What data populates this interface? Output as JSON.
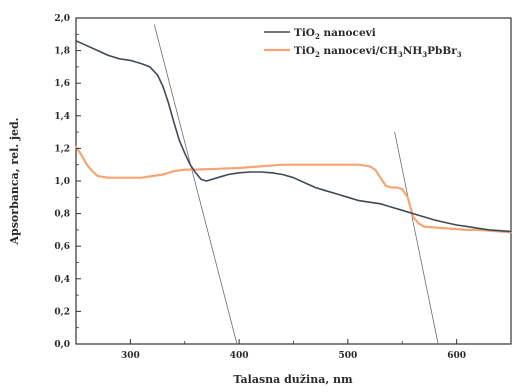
{
  "chart_data": {
    "type": "line",
    "xlabel": "Talasna dužina, nm",
    "ylabel": "Apsorbanca, rel. jed.",
    "xlim": [
      250,
      650
    ],
    "ylim": [
      0.0,
      2.0
    ],
    "x_ticks": [
      300,
      400,
      500,
      600
    ],
    "y_ticks": [
      "0,0",
      "0,2",
      "0,4",
      "0,6",
      "0,8",
      "1,0",
      "1,2",
      "1,4",
      "1,6",
      "1,8",
      "2,0"
    ],
    "y_tick_values": [
      0.0,
      0.2,
      0.4,
      0.6,
      0.8,
      1.0,
      1.2,
      1.4,
      1.6,
      1.8,
      2.0
    ],
    "legend_position": "top-right",
    "grid": false,
    "series": [
      {
        "name": "TiO2 nanocevi",
        "legend": {
          "parts": [
            "TiO",
            "2",
            " nanocevi"
          ]
        },
        "color": "#404a55",
        "x": [
          250,
          260,
          270,
          280,
          290,
          300,
          310,
          318,
          325,
          330,
          335,
          340,
          345,
          350,
          355,
          360,
          365,
          370,
          375,
          380,
          390,
          400,
          410,
          420,
          430,
          440,
          450,
          460,
          470,
          480,
          490,
          500,
          510,
          520,
          530,
          540,
          550,
          560,
          570,
          580,
          590,
          600,
          610,
          620,
          630,
          640,
          650
        ],
        "y": [
          1.86,
          1.83,
          1.8,
          1.77,
          1.75,
          1.74,
          1.72,
          1.7,
          1.65,
          1.58,
          1.48,
          1.36,
          1.25,
          1.17,
          1.1,
          1.05,
          1.01,
          1.0,
          1.01,
          1.02,
          1.04,
          1.05,
          1.055,
          1.055,
          1.05,
          1.04,
          1.02,
          0.99,
          0.96,
          0.94,
          0.92,
          0.9,
          0.88,
          0.87,
          0.86,
          0.84,
          0.82,
          0.8,
          0.78,
          0.76,
          0.745,
          0.73,
          0.72,
          0.71,
          0.7,
          0.695,
          0.69
        ]
      },
      {
        "name": "TiO2 nanocevi/CH3NH3PbBr3",
        "legend": {
          "parts": [
            "TiO",
            "2",
            " nanocevi/CH",
            "3",
            "NH",
            "3",
            "PbBr",
            "3"
          ]
        },
        "color": "#f3a575",
        "x": [
          250,
          255,
          260,
          265,
          270,
          280,
          290,
          300,
          310,
          320,
          330,
          340,
          350,
          360,
          380,
          400,
          420,
          440,
          460,
          480,
          500,
          510,
          520,
          525,
          530,
          535,
          540,
          545,
          550,
          555,
          560,
          565,
          570,
          580,
          590,
          600,
          610,
          620,
          630,
          640,
          650
        ],
        "y": [
          1.21,
          1.16,
          1.1,
          1.06,
          1.03,
          1.02,
          1.02,
          1.02,
          1.02,
          1.03,
          1.04,
          1.06,
          1.07,
          1.07,
          1.075,
          1.08,
          1.09,
          1.1,
          1.1,
          1.1,
          1.1,
          1.1,
          1.09,
          1.07,
          1.02,
          0.97,
          0.96,
          0.96,
          0.95,
          0.9,
          0.78,
          0.74,
          0.72,
          0.715,
          0.71,
          0.705,
          0.7,
          0.7,
          0.695,
          0.69,
          0.685
        ]
      }
    ],
    "tangent_lines": [
      {
        "x": [
          322,
          398
        ],
        "y": [
          1.96,
          0.0
        ]
      },
      {
        "x": [
          543,
          583
        ],
        "y": [
          1.3,
          0.0
        ]
      }
    ]
  }
}
